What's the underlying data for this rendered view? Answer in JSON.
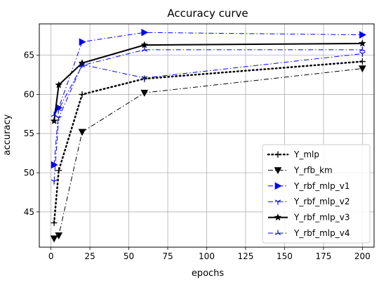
{
  "chart_data": {
    "type": "line",
    "title": "Accuracy curve",
    "xlabel": "epochs",
    "ylabel": "accuracy",
    "xlim": [
      -7.5,
      207.5
    ],
    "ylim": [
      40.5,
      69.0
    ],
    "xticks": [
      0,
      25,
      50,
      75,
      100,
      125,
      150,
      175,
      200
    ],
    "yticks": [
      45,
      50,
      55,
      60,
      65
    ],
    "grid": true,
    "legend_position": "lower right",
    "x": [
      2,
      5,
      20,
      60,
      200
    ],
    "series": [
      {
        "name": "Y_mlp",
        "values": [
          43.6,
          50.3,
          60.0,
          62.0,
          64.2
        ],
        "color": "#000000",
        "dash": "dotted",
        "linewidth": 2.5,
        "marker": "plus"
      },
      {
        "name": "Y_rfb_km",
        "values": [
          41.6,
          42.0,
          55.2,
          60.2,
          63.3
        ],
        "color": "#000000",
        "dash": "dashdot",
        "linewidth": 1.0,
        "marker": "triangle-down"
      },
      {
        "name": "Y_rbf_mlp_v1",
        "values": [
          51.0,
          58.3,
          66.7,
          67.9,
          67.6
        ],
        "color": "#0000ff",
        "dash": "dashdot",
        "linewidth": 1.0,
        "marker": "triangle-right"
      },
      {
        "name": "Y_rbf_mlp_v2",
        "values": [
          48.9,
          57.0,
          63.8,
          62.1,
          65.2
        ],
        "color": "#0000ff",
        "dash": "dashdot",
        "linewidth": 1.0,
        "marker": "tri-down"
      },
      {
        "name": "Y_rbf_mlp_v3",
        "values": [
          56.6,
          61.2,
          64.0,
          66.3,
          66.5
        ],
        "color": "#000000",
        "dash": "solid",
        "linewidth": 2.0,
        "marker": "star"
      },
      {
        "name": "Y_rbf_mlp_v4",
        "values": [
          57.4,
          58.1,
          63.7,
          65.7,
          65.7
        ],
        "color": "#0000ff",
        "dash": "dashdot",
        "linewidth": 1.0,
        "marker": "tri-up"
      }
    ]
  }
}
